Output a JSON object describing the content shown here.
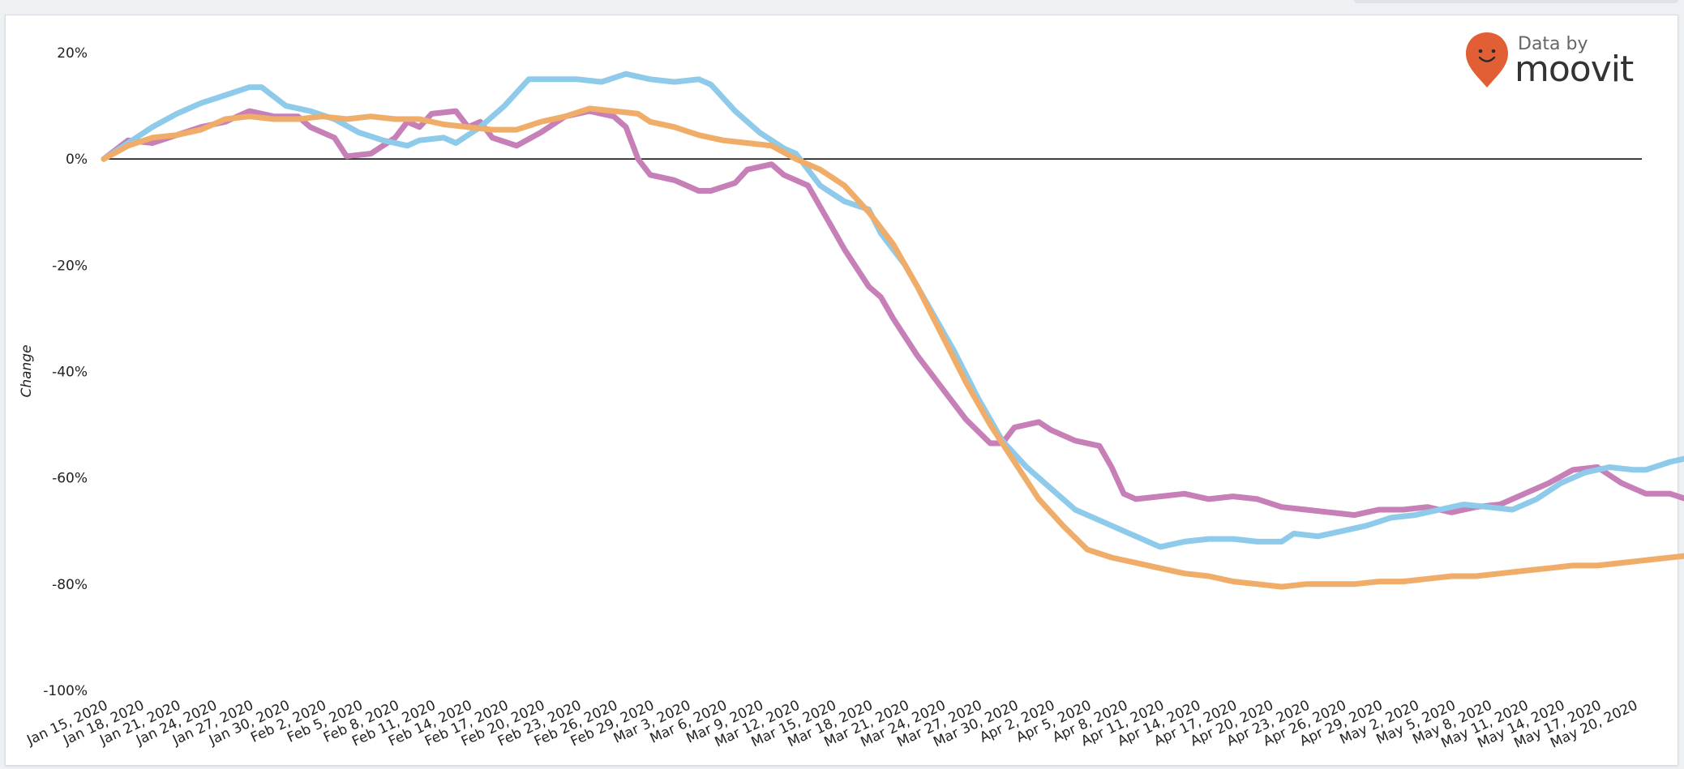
{
  "brand": {
    "top_label": "Data by",
    "name": "moovit",
    "pin_color": "#e25f35"
  },
  "chart_data": {
    "type": "line",
    "title": "",
    "xlabel": "",
    "ylabel": "Change",
    "ylim": [
      -100,
      20
    ],
    "yticks": [
      20,
      0,
      -20,
      -40,
      -60,
      -80,
      -100
    ],
    "ytick_labels": [
      "20%",
      "0%",
      "-20%",
      "-40%",
      "-60%",
      "-80%",
      "-100%"
    ],
    "zero_line": true,
    "grid": false,
    "x_start": "Jan 15, 2020",
    "x_end": "May 20, 2020",
    "xtick_labels": [
      "Jan 15, 2020",
      "Jan 18, 2020",
      "Jan 21, 2020",
      "Jan 24, 2020",
      "Jan 27, 2020",
      "Jan 30, 2020",
      "Feb 2, 2020",
      "Feb 5, 2020",
      "Feb 8, 2020",
      "Feb 11, 2020",
      "Feb 14, 2020",
      "Feb 17, 2020",
      "Feb 20, 2020",
      "Feb 23, 2020",
      "Feb 26, 2020",
      "Feb 29, 2020",
      "Mar 3, 2020",
      "Mar 6, 2020",
      "Mar 9, 2020",
      "Mar 12, 2020",
      "Mar 15, 2020",
      "Mar 18, 2020",
      "Mar 21, 2020",
      "Mar 24, 2020",
      "Mar 27, 2020",
      "Mar 30, 2020",
      "Apr 2, 2020",
      "Apr 5, 2020",
      "Apr 8, 2020",
      "Apr 11, 2020",
      "Apr 14, 2020",
      "Apr 17, 2020",
      "Apr 20, 2020",
      "Apr 23, 2020",
      "Apr 26, 2020",
      "Apr 29, 2020",
      "May 2, 2020",
      "May 5, 2020",
      "May 8, 2020",
      "May 11, 2020",
      "May 14, 2020",
      "May 17, 2020",
      "May 20, 2020"
    ],
    "series": [
      {
        "color": "#c77fb8",
        "points": [
          [
            "Jan 15, 2020",
            0
          ],
          [
            "Jan 17, 2020",
            3.5
          ],
          [
            "Jan 19, 2020",
            3
          ],
          [
            "Jan 21, 2020",
            4.5
          ],
          [
            "Jan 23, 2020",
            6
          ],
          [
            "Jan 25, 2020",
            7
          ],
          [
            "Jan 27, 2020",
            9
          ],
          [
            "Jan 29, 2020",
            8
          ],
          [
            "Jan 31, 2020",
            8
          ],
          [
            "Feb 1, 2020",
            6
          ],
          [
            "Feb 3, 2020",
            4
          ],
          [
            "Feb 4, 2020",
            0.5
          ],
          [
            "Feb 6, 2020",
            1
          ],
          [
            "Feb 8, 2020",
            4
          ],
          [
            "Feb 9, 2020",
            7
          ],
          [
            "Feb 10, 2020",
            6
          ],
          [
            "Feb 11, 2020",
            8.5
          ],
          [
            "Feb 13, 2020",
            9
          ],
          [
            "Feb 14, 2020",
            6
          ],
          [
            "Feb 15, 2020",
            7
          ],
          [
            "Feb 16, 2020",
            4
          ],
          [
            "Feb 18, 2020",
            2.5
          ],
          [
            "Feb 20, 2020",
            5
          ],
          [
            "Feb 22, 2020",
            8
          ],
          [
            "Feb 24, 2020",
            9
          ],
          [
            "Feb 26, 2020",
            8
          ],
          [
            "Feb 27, 2020",
            6
          ],
          [
            "Feb 28, 2020",
            0
          ],
          [
            "Feb 29, 2020",
            -3
          ],
          [
            "Mar 2, 2020",
            -4
          ],
          [
            "Mar 4, 2020",
            -6
          ],
          [
            "Mar 5, 2020",
            -6
          ],
          [
            "Mar 7, 2020",
            -4.5
          ],
          [
            "Mar 8, 2020",
            -2
          ],
          [
            "Mar 10, 2020",
            -1
          ],
          [
            "Mar 11, 2020",
            -3
          ],
          [
            "Mar 13, 2020",
            -5
          ],
          [
            "Mar 15, 2020",
            -13
          ],
          [
            "Mar 16, 2020",
            -17
          ],
          [
            "Mar 18, 2020",
            -24
          ],
          [
            "Mar 19, 2020",
            -26
          ],
          [
            "Mar 20, 2020",
            -30
          ],
          [
            "Mar 22, 2020",
            -37
          ],
          [
            "Mar 24, 2020",
            -43
          ],
          [
            "Mar 26, 2020",
            -49
          ],
          [
            "Mar 28, 2020",
            -53.5
          ],
          [
            "Mar 29, 2020",
            -53.5
          ],
          [
            "Mar 30, 2020",
            -50.5
          ],
          [
            "Apr 1, 2020",
            -49.5
          ],
          [
            "Apr 2, 2020",
            -51
          ],
          [
            "Apr 4, 2020",
            -53
          ],
          [
            "Apr 6, 2020",
            -54
          ],
          [
            "Apr 7, 2020",
            -58
          ],
          [
            "Apr 8, 2020",
            -63
          ],
          [
            "Apr 9, 2020",
            -64
          ],
          [
            "Apr 11, 2020",
            -63.5
          ],
          [
            "Apr 13, 2020",
            -63
          ],
          [
            "Apr 15, 2020",
            -64
          ],
          [
            "Apr 17, 2020",
            -63.5
          ],
          [
            "Apr 19, 2020",
            -64
          ],
          [
            "Apr 21, 2020",
            -65.5
          ],
          [
            "Apr 23, 2020",
            -66
          ],
          [
            "Apr 25, 2020",
            -66.5
          ],
          [
            "Apr 27, 2020",
            -67
          ],
          [
            "Apr 29, 2020",
            -66
          ],
          [
            "May 1, 2020",
            -66
          ],
          [
            "May 3, 2020",
            -65.5
          ],
          [
            "May 5, 2020",
            -66.5
          ],
          [
            "May 7, 2020",
            -65.5
          ],
          [
            "May 9, 2020",
            -65
          ],
          [
            "May 11, 2020",
            -63
          ],
          [
            "May 13, 2020",
            -61
          ],
          [
            "May 15, 2020",
            -58.5
          ],
          [
            "May 17, 2020",
            -58
          ],
          [
            "May 19, 2020",
            -61
          ],
          [
            "May 21, 2020",
            -63
          ],
          [
            "May 23, 2020",
            -63
          ],
          [
            "May 25, 2020",
            -64.5
          ],
          [
            "May 26, 2020",
            -63.5
          ]
        ]
      },
      {
        "color": "#8ecae9",
        "points": [
          [
            "Jan 15, 2020",
            0
          ],
          [
            "Jan 17, 2020",
            3
          ],
          [
            "Jan 19, 2020",
            6
          ],
          [
            "Jan 21, 2020",
            8.5
          ],
          [
            "Jan 23, 2020",
            10.5
          ],
          [
            "Jan 25, 2020",
            12
          ],
          [
            "Jan 27, 2020",
            13.5
          ],
          [
            "Jan 28, 2020",
            13.5
          ],
          [
            "Jan 30, 2020",
            10
          ],
          [
            "Feb 1, 2020",
            9
          ],
          [
            "Feb 3, 2020",
            7.5
          ],
          [
            "Feb 5, 2020",
            5
          ],
          [
            "Feb 7, 2020",
            3.5
          ],
          [
            "Feb 9, 2020",
            2.5
          ],
          [
            "Feb 10, 2020",
            3.5
          ],
          [
            "Feb 12, 2020",
            4
          ],
          [
            "Feb 13, 2020",
            3
          ],
          [
            "Feb 15, 2020",
            6
          ],
          [
            "Feb 17, 2020",
            10
          ],
          [
            "Feb 19, 2020",
            15
          ],
          [
            "Feb 21, 2020",
            15
          ],
          [
            "Feb 23, 2020",
            15
          ],
          [
            "Feb 25, 2020",
            14.5
          ],
          [
            "Feb 27, 2020",
            16
          ],
          [
            "Feb 29, 2020",
            15
          ],
          [
            "Mar 2, 2020",
            14.5
          ],
          [
            "Mar 4, 2020",
            15
          ],
          [
            "Mar 5, 2020",
            14
          ],
          [
            "Mar 7, 2020",
            9
          ],
          [
            "Mar 9, 2020",
            5
          ],
          [
            "Mar 11, 2020",
            2
          ],
          [
            "Mar 12, 2020",
            1
          ],
          [
            "Mar 14, 2020",
            -5
          ],
          [
            "Mar 16, 2020",
            -8
          ],
          [
            "Mar 18, 2020",
            -9.5
          ],
          [
            "Mar 19, 2020",
            -14
          ],
          [
            "Mar 21, 2020",
            -20
          ],
          [
            "Mar 23, 2020",
            -28
          ],
          [
            "Mar 25, 2020",
            -36
          ],
          [
            "Mar 27, 2020",
            -45
          ],
          [
            "Mar 29, 2020",
            -53
          ],
          [
            "Mar 31, 2020",
            -58
          ],
          [
            "Apr 2, 2020",
            -62
          ],
          [
            "Apr 4, 2020",
            -66
          ],
          [
            "Apr 6, 2020",
            -68
          ],
          [
            "Apr 8, 2020",
            -70
          ],
          [
            "Apr 10, 2020",
            -72
          ],
          [
            "Apr 11, 2020",
            -73
          ],
          [
            "Apr 13, 2020",
            -72
          ],
          [
            "Apr 15, 2020",
            -71.5
          ],
          [
            "Apr 17, 2020",
            -71.5
          ],
          [
            "Apr 19, 2020",
            -72
          ],
          [
            "Apr 21, 2020",
            -72
          ],
          [
            "Apr 22, 2020",
            -70.5
          ],
          [
            "Apr 24, 2020",
            -71
          ],
          [
            "Apr 26, 2020",
            -70
          ],
          [
            "Apr 28, 2020",
            -69
          ],
          [
            "Apr 30, 2020",
            -67.5
          ],
          [
            "May 2, 2020",
            -67
          ],
          [
            "May 4, 2020",
            -66
          ],
          [
            "May 6, 2020",
            -65
          ],
          [
            "May 8, 2020",
            -65.5
          ],
          [
            "May 10, 2020",
            -66
          ],
          [
            "May 12, 2020",
            -64
          ],
          [
            "May 14, 2020",
            -61
          ],
          [
            "May 16, 2020",
            -59
          ],
          [
            "May 18, 2020",
            -58
          ],
          [
            "May 20, 2020",
            -58.5
          ],
          [
            "May 21, 2020",
            -58.5
          ],
          [
            "May 23, 2020",
            -57
          ],
          [
            "May 25, 2020",
            -56
          ],
          [
            "May 26, 2020",
            -54.5
          ]
        ]
      },
      {
        "color": "#f0ad6a",
        "points": [
          [
            "Jan 15, 2020",
            0
          ],
          [
            "Jan 17, 2020",
            2.5
          ],
          [
            "Jan 19, 2020",
            4
          ],
          [
            "Jan 21, 2020",
            4.5
          ],
          [
            "Jan 23, 2020",
            5.5
          ],
          [
            "Jan 25, 2020",
            7.5
          ],
          [
            "Jan 27, 2020",
            8
          ],
          [
            "Jan 29, 2020",
            7.5
          ],
          [
            "Jan 31, 2020",
            7.5
          ],
          [
            "Feb 2, 2020",
            8
          ],
          [
            "Feb 4, 2020",
            7.5
          ],
          [
            "Feb 6, 2020",
            8
          ],
          [
            "Feb 8, 2020",
            7.5
          ],
          [
            "Feb 10, 2020",
            7.5
          ],
          [
            "Feb 12, 2020",
            6.5
          ],
          [
            "Feb 14, 2020",
            6
          ],
          [
            "Feb 16, 2020",
            5.5
          ],
          [
            "Feb 18, 2020",
            5.5
          ],
          [
            "Feb 20, 2020",
            7
          ],
          [
            "Feb 22, 2020",
            8
          ],
          [
            "Feb 24, 2020",
            9.5
          ],
          [
            "Feb 26, 2020",
            9
          ],
          [
            "Feb 28, 2020",
            8.5
          ],
          [
            "Feb 29, 2020",
            7
          ],
          [
            "Mar 2, 2020",
            6
          ],
          [
            "Mar 4, 2020",
            4.5
          ],
          [
            "Mar 6, 2020",
            3.5
          ],
          [
            "Mar 8, 2020",
            3
          ],
          [
            "Mar 10, 2020",
            2.5
          ],
          [
            "Mar 12, 2020",
            0
          ],
          [
            "Mar 14, 2020",
            -2
          ],
          [
            "Mar 16, 2020",
            -5
          ],
          [
            "Mar 18, 2020",
            -10
          ],
          [
            "Mar 20, 2020",
            -16
          ],
          [
            "Mar 22, 2020",
            -24
          ],
          [
            "Mar 24, 2020",
            -33
          ],
          [
            "Mar 26, 2020",
            -42
          ],
          [
            "Mar 28, 2020",
            -50
          ],
          [
            "Mar 30, 2020",
            -57
          ],
          [
            "Apr 1, 2020",
            -64
          ],
          [
            "Apr 3, 2020",
            -69
          ],
          [
            "Apr 5, 2020",
            -73.5
          ],
          [
            "Apr 7, 2020",
            -75
          ],
          [
            "Apr 9, 2020",
            -76
          ],
          [
            "Apr 11, 2020",
            -77
          ],
          [
            "Apr 13, 2020",
            -78
          ],
          [
            "Apr 15, 2020",
            -78.5
          ],
          [
            "Apr 17, 2020",
            -79.5
          ],
          [
            "Apr 19, 2020",
            -80
          ],
          [
            "Apr 21, 2020",
            -80.5
          ],
          [
            "Apr 23, 2020",
            -80
          ],
          [
            "Apr 25, 2020",
            -80
          ],
          [
            "Apr 27, 2020",
            -80
          ],
          [
            "Apr 29, 2020",
            -79.5
          ],
          [
            "May 1, 2020",
            -79.5
          ],
          [
            "May 3, 2020",
            -79
          ],
          [
            "May 5, 2020",
            -78.5
          ],
          [
            "May 7, 2020",
            -78.5
          ],
          [
            "May 9, 2020",
            -78
          ],
          [
            "May 11, 2020",
            -77.5
          ],
          [
            "May 13, 2020",
            -77
          ],
          [
            "May 15, 2020",
            -76.5
          ],
          [
            "May 17, 2020",
            -76.5
          ],
          [
            "May 19, 2020",
            -76
          ],
          [
            "May 21, 2020",
            -75.5
          ],
          [
            "May 23, 2020",
            -75
          ],
          [
            "May 25, 2020",
            -74.5
          ],
          [
            "May 26, 2020",
            -74
          ]
        ]
      }
    ]
  }
}
